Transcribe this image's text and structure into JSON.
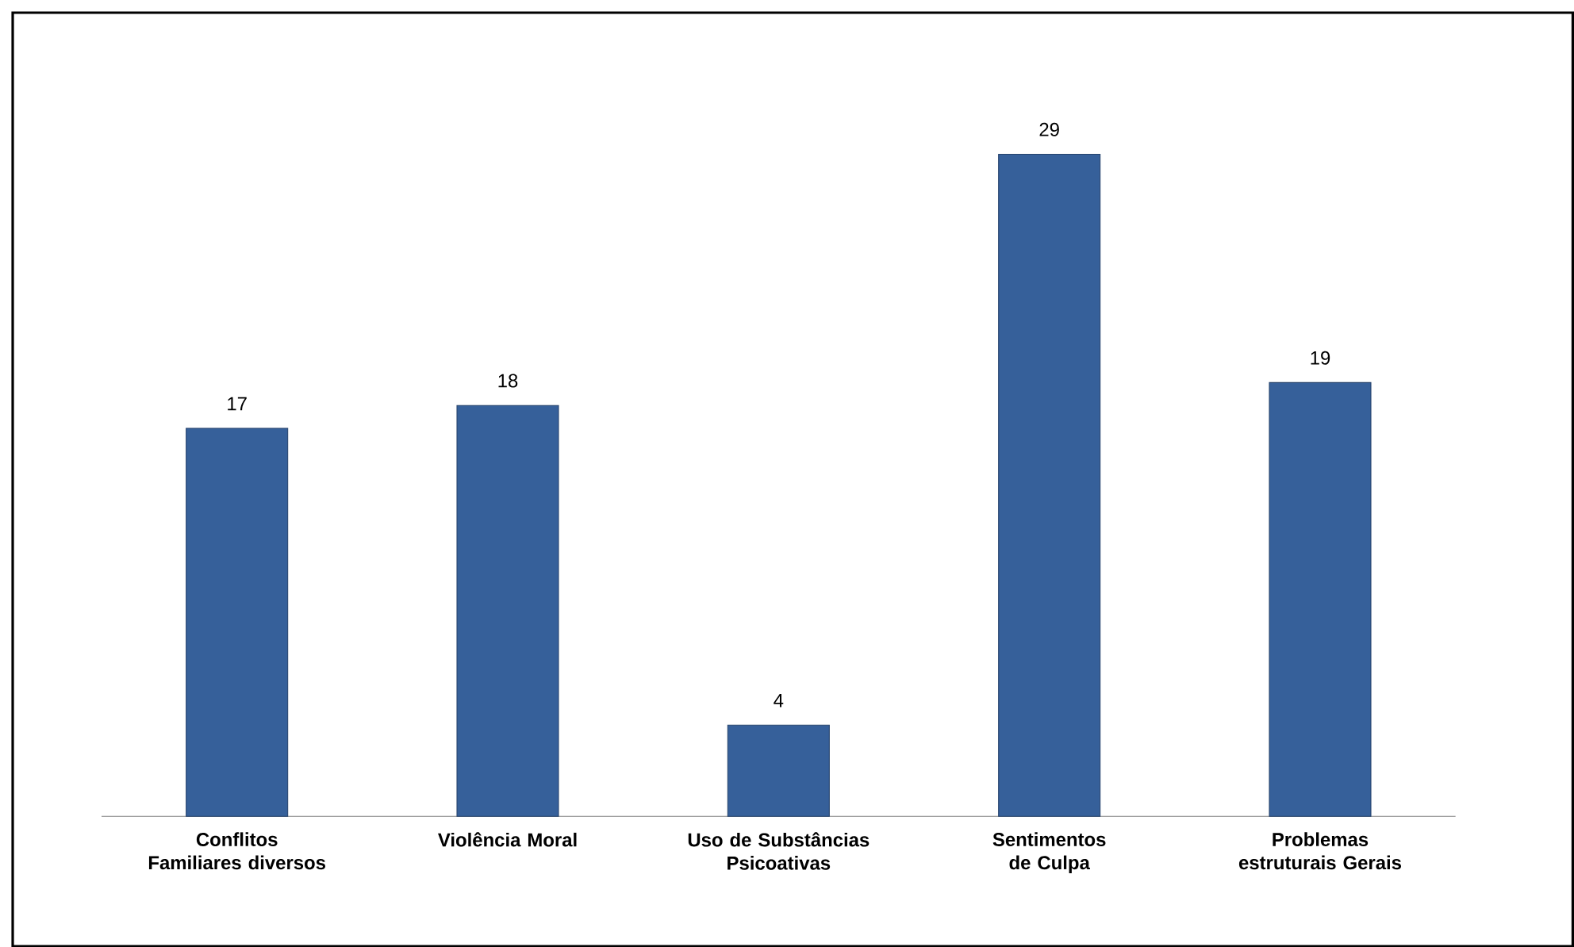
{
  "chart_data": {
    "type": "bar",
    "categories": [
      "Conflitos Familiares diversos",
      "Violência Moral",
      "Uso de Substâncias Psicoativas",
      "Sentimentos  de Culpa",
      "Problemas estruturais Gerais"
    ],
    "values": [
      17,
      18,
      4,
      29,
      19
    ],
    "color": "#36609a",
    "data_labels": true
  }
}
